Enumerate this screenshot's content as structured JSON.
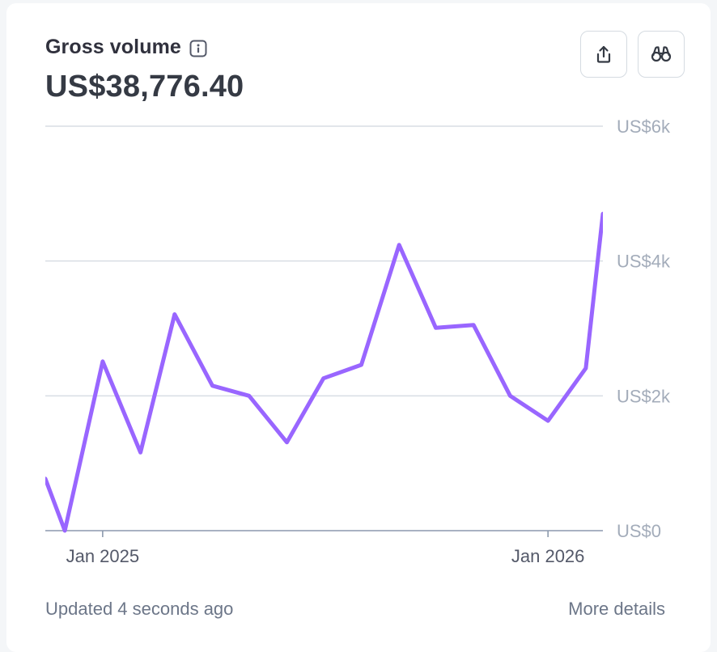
{
  "header": {
    "title": "Gross volume",
    "amount": "US$38,776.40"
  },
  "icons": {
    "info": "info-icon",
    "export": "share-export-icon",
    "explore": "binoculars-icon"
  },
  "colors": {
    "line": "#9966ff",
    "grid": "#d8dee4",
    "axis": "#8c99ad"
  },
  "footer": {
    "updated": "Updated 4 seconds ago",
    "more_details": "More details"
  },
  "chart_data": {
    "type": "line",
    "title": "Gross volume",
    "xlabel": "",
    "ylabel": "",
    "ylim": [
      0,
      6000
    ],
    "y_ticks": [
      {
        "value": 0,
        "label": "US$0"
      },
      {
        "value": 2000,
        "label": "US$2k"
      },
      {
        "value": 4000,
        "label": "US$4k"
      },
      {
        "value": 6000,
        "label": "US$6k"
      }
    ],
    "x_ticks": [
      {
        "x": "2025-01",
        "label": "Jan 2025"
      },
      {
        "x": "2026-01",
        "label": "Jan 2026"
      }
    ],
    "x": [
      "2024-11-15",
      "2024-12",
      "2025-01",
      "2025-02",
      "2025-03",
      "2025-04",
      "2025-05",
      "2025-06",
      "2025-07",
      "2025-08",
      "2025-09",
      "2025-10",
      "2025-11",
      "2025-12",
      "2026-01",
      "2026-02",
      "2026-02-15"
    ],
    "series": [
      {
        "values": [
          770,
          0,
          2510,
          1160,
          3210,
          2150,
          2000,
          1310,
          2260,
          2460,
          4240,
          3010,
          3050,
          2000,
          1630,
          2410,
          4700
        ]
      }
    ],
    "grid": true,
    "legend": "none"
  }
}
